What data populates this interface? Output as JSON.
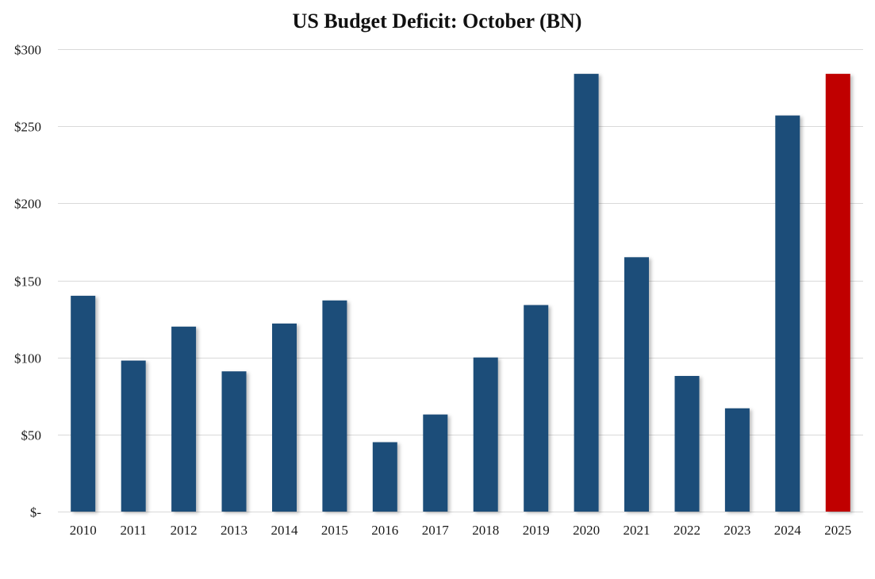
{
  "chart_data": {
    "type": "bar",
    "title": "US Budget Deficit: October  (BN)",
    "xlabel": "",
    "ylabel": "",
    "categories": [
      "2010",
      "2011",
      "2012",
      "2013",
      "2014",
      "2015",
      "2016",
      "2017",
      "2018",
      "2019",
      "2020",
      "2021",
      "2022",
      "2023",
      "2024",
      "2025"
    ],
    "values": [
      140,
      98,
      120,
      91,
      122,
      137,
      45,
      63,
      100,
      134,
      284,
      165,
      88,
      67,
      257,
      284
    ],
    "ylim": [
      0,
      300
    ],
    "yticks": [
      0,
      50,
      100,
      150,
      200,
      250,
      300
    ],
    "ytick_labels": [
      "$-",
      "$50",
      "$100",
      "$150",
      "$200",
      "$250",
      "$300"
    ],
    "grid": true,
    "legend": "none",
    "colors": {
      "default_bar": "#1f4e79",
      "highlight_bar": "#c00000",
      "grid": "#d9d9d9"
    },
    "highlight_category": "2025"
  }
}
